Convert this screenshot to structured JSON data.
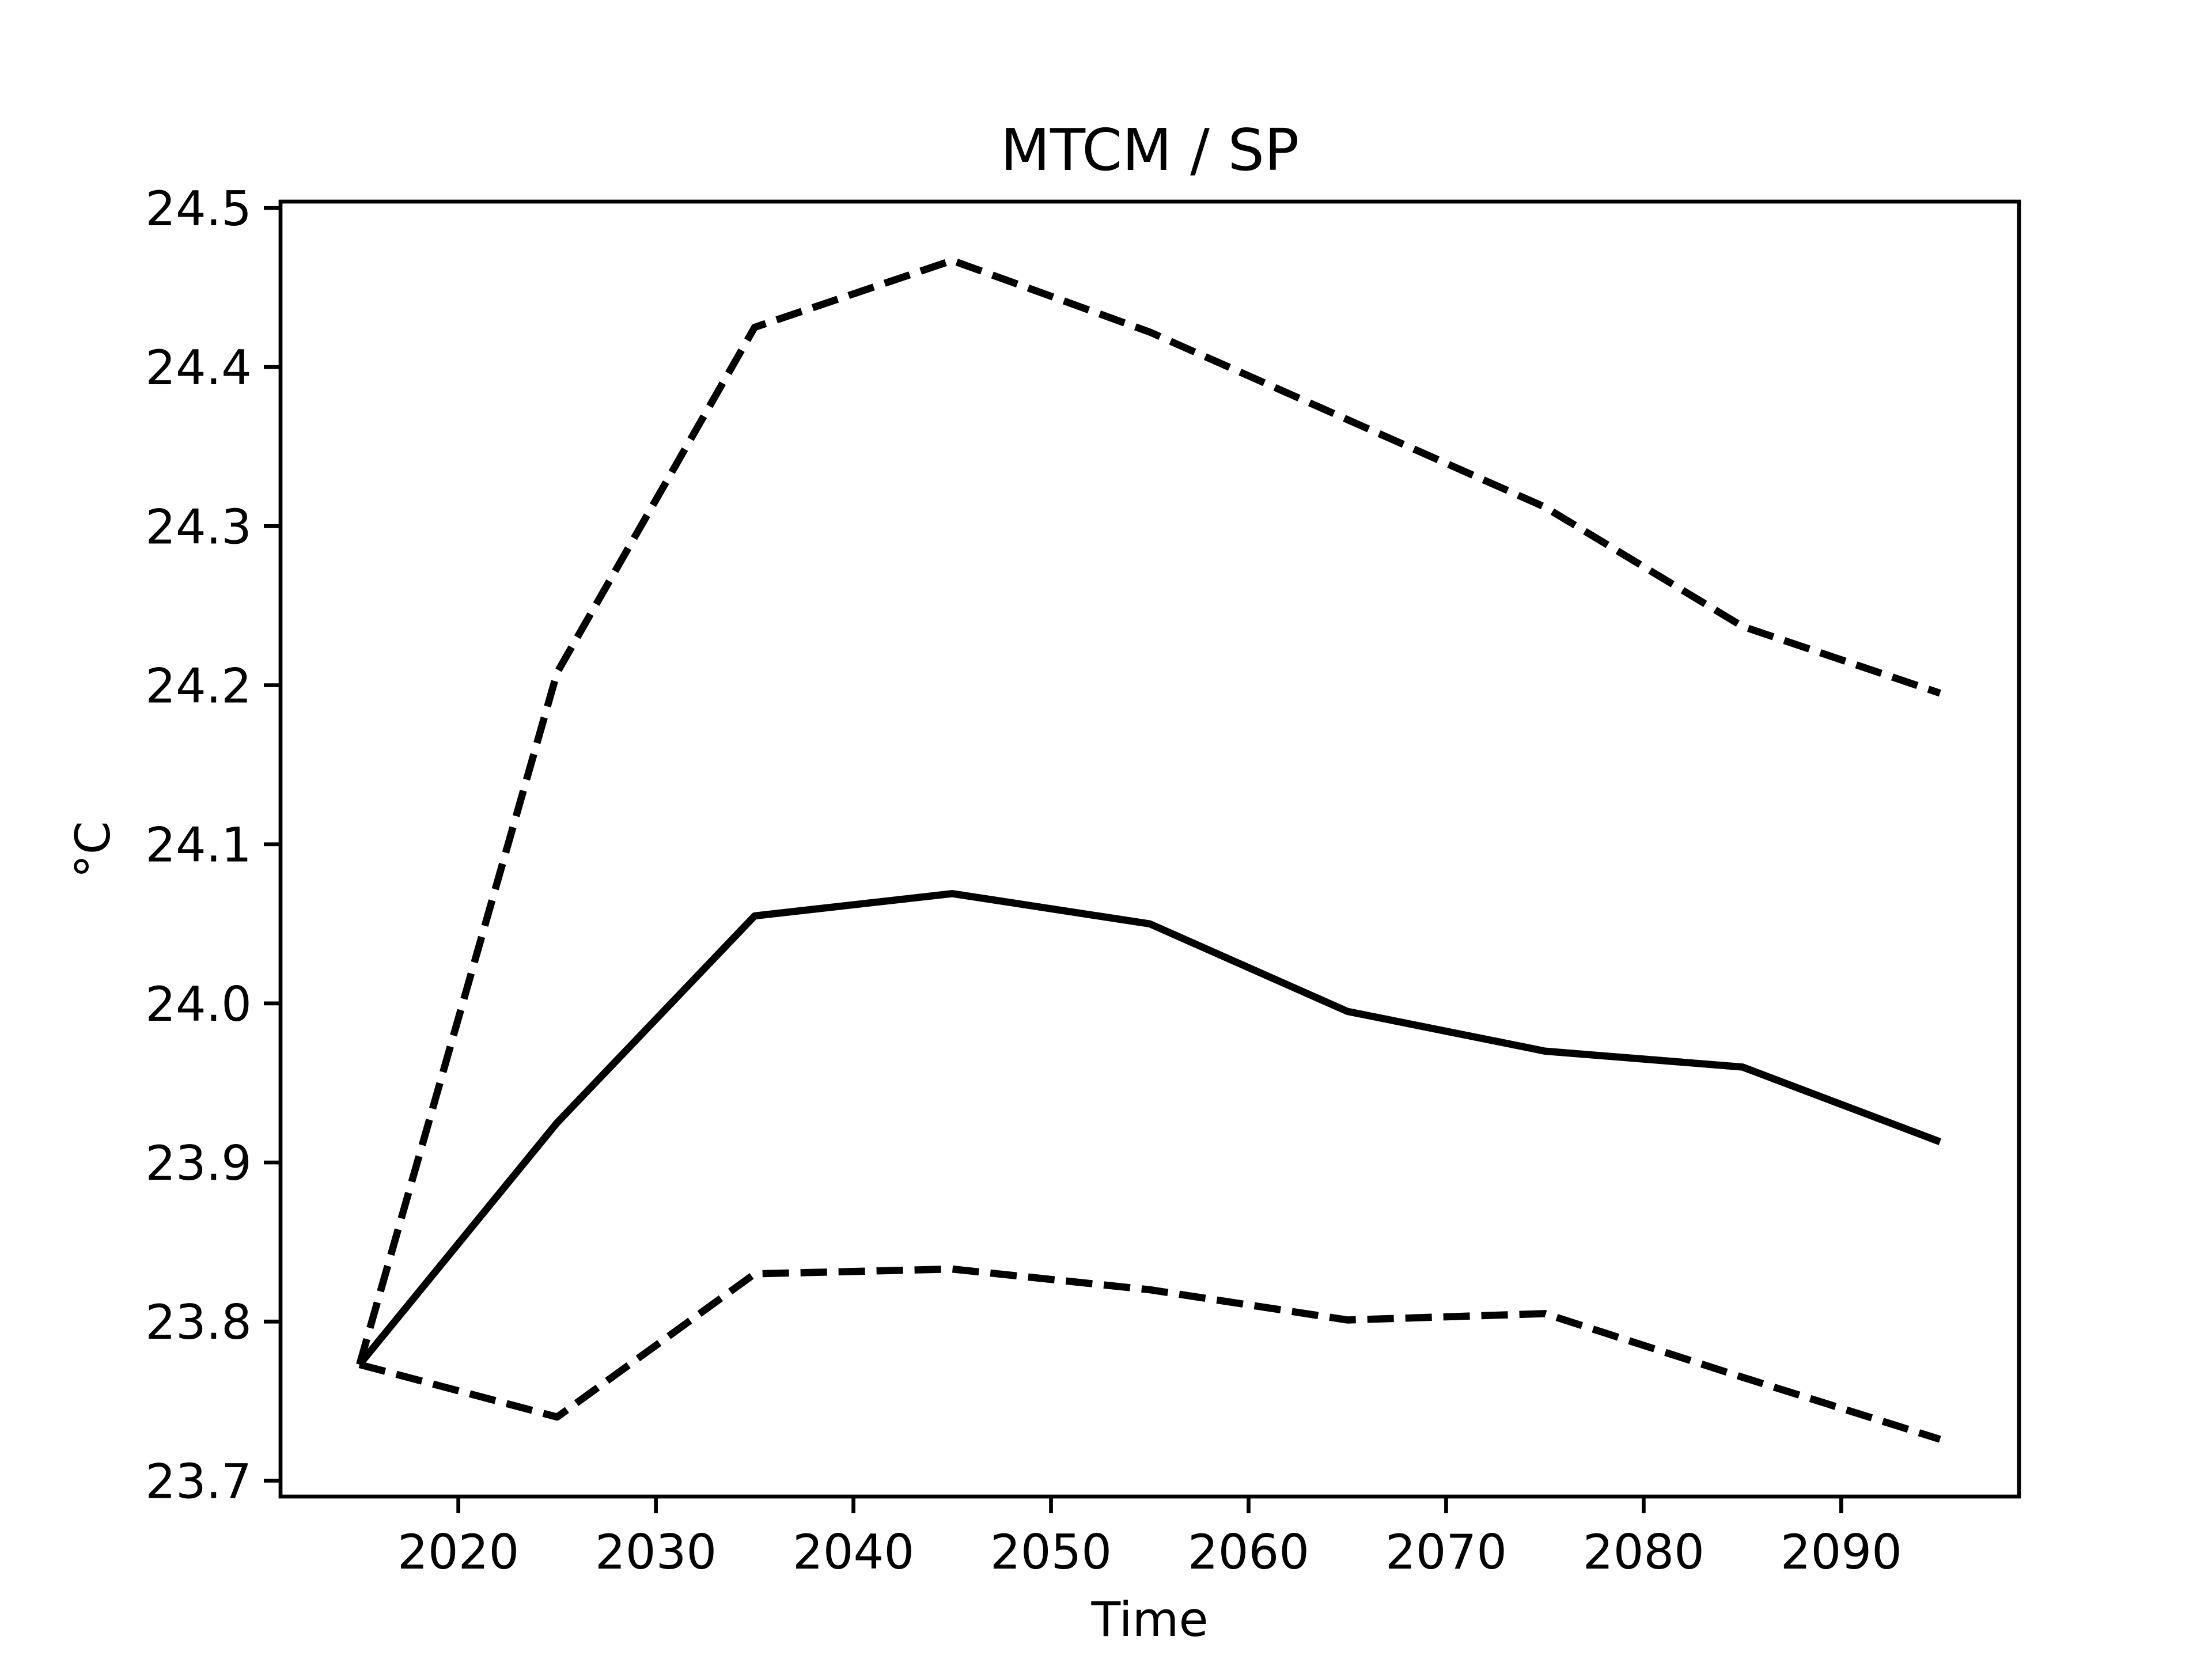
{
  "chart_data": {
    "type": "line",
    "title": "MTCM / SP",
    "x_label": "Time",
    "y_label": "°C",
    "x": [
      2015,
      2025,
      2035,
      2045,
      2055,
      2065,
      2075,
      2085,
      2095
    ],
    "series": [
      {
        "color": "#000000",
        "linestyle": "dashed",
        "values": [
          23.773,
          24.208,
          24.425,
          24.467,
          24.422,
          24.367,
          24.312,
          24.237,
          24.195
        ]
      },
      {
        "color": "#000000",
        "linestyle": "solid",
        "values": [
          23.773,
          23.925,
          24.055,
          24.069,
          24.05,
          23.995,
          23.97,
          23.96,
          23.913
        ]
      },
      {
        "color": "#000000",
        "linestyle": "dashed",
        "values": [
          23.773,
          23.74,
          23.83,
          23.833,
          23.82,
          23.801,
          23.805,
          23.765,
          23.726
        ]
      }
    ],
    "xlim": [
      2011,
      2099
    ],
    "xticks": [
      2020,
      2030,
      2040,
      2050,
      2060,
      2070,
      2080,
      2090
    ],
    "ylim": [
      23.69,
      24.504
    ],
    "yticks": [
      23.7,
      23.8,
      23.9,
      {
        "value": 24,
        "label": "24.0"
      },
      24.1,
      24.2,
      24.3,
      24.4,
      24.5
    ],
    "grid": false
  }
}
